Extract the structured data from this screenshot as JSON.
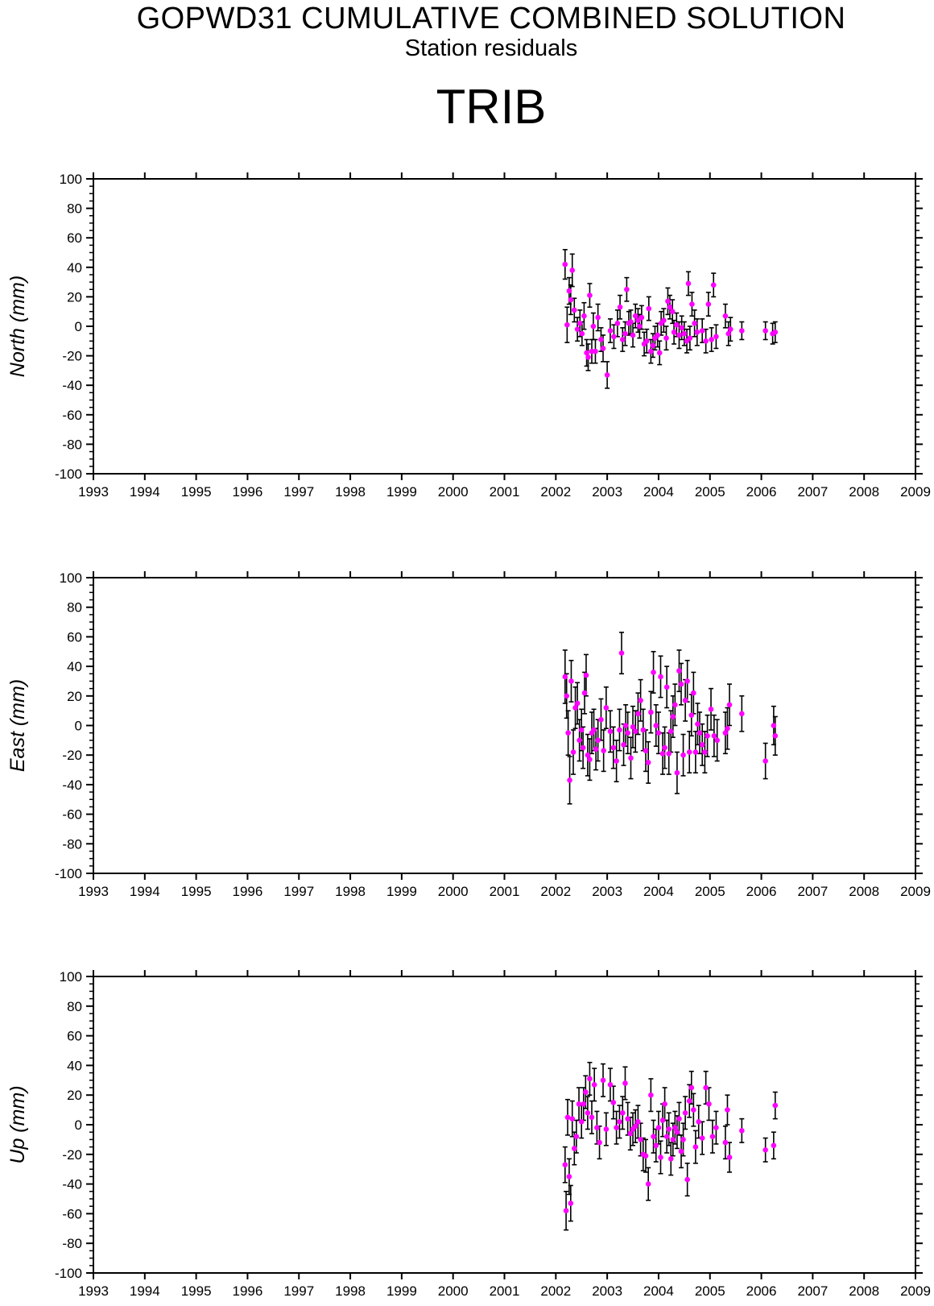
{
  "header": {
    "title": "GOPWD31 CUMULATIVE COMBINED SOLUTION",
    "subtitle": "Station residuals",
    "station": "TRIB"
  },
  "colors": {
    "point": "#ff00ff",
    "errorbar": "#000000",
    "axis": "#000000"
  },
  "chart_data": [
    {
      "type": "scatter",
      "ylabel": "North (mm)",
      "xlim": [
        1993,
        2009
      ],
      "ylim": [
        -100,
        100
      ],
      "x_ticks": [
        "1993",
        "1994",
        "1995",
        "1996",
        "1997",
        "1998",
        "1999",
        "2000",
        "2001",
        "2002",
        "2003",
        "2004",
        "2005",
        "2006",
        "2007",
        "2008",
        "2009"
      ],
      "y_ticks": [
        "100",
        "80",
        "60",
        "40",
        "20",
        "0",
        "-20",
        "-40",
        "-60",
        "-80",
        "-100"
      ],
      "grid": false,
      "points": [
        [
          2002.18,
          42,
          10
        ],
        [
          2002.22,
          1,
          12
        ],
        [
          2002.26,
          24,
          9
        ],
        [
          2002.29,
          18,
          10
        ],
        [
          2002.32,
          38,
          11
        ],
        [
          2002.36,
          11,
          8
        ],
        [
          2002.42,
          -2,
          8
        ],
        [
          2002.47,
          2,
          9
        ],
        [
          2002.51,
          -5,
          8
        ],
        [
          2002.55,
          7,
          9
        ],
        [
          2002.6,
          -18,
          9
        ],
        [
          2002.63,
          -21,
          9
        ],
        [
          2002.66,
          21,
          8
        ],
        [
          2002.7,
          -17,
          8
        ],
        [
          2002.73,
          0,
          9
        ],
        [
          2002.77,
          -17,
          8
        ],
        [
          2002.82,
          6,
          9
        ],
        [
          2002.88,
          -9,
          8
        ],
        [
          2002.92,
          -15,
          9
        ],
        [
          2003.0,
          -33,
          9
        ],
        [
          2003.06,
          -3,
          8
        ],
        [
          2003.13,
          -7,
          8
        ],
        [
          2003.2,
          2,
          9
        ],
        [
          2003.25,
          13,
          8
        ],
        [
          2003.3,
          -9,
          8
        ],
        [
          2003.35,
          -5,
          8
        ],
        [
          2003.38,
          25,
          8
        ],
        [
          2003.42,
          2,
          8
        ],
        [
          2003.46,
          3,
          8
        ],
        [
          2003.5,
          -6,
          8
        ],
        [
          2003.55,
          7,
          8
        ],
        [
          2003.6,
          4,
          8
        ],
        [
          2003.63,
          0,
          8
        ],
        [
          2003.67,
          6,
          8
        ],
        [
          2003.72,
          -12,
          8
        ],
        [
          2003.77,
          -10,
          8
        ],
        [
          2003.81,
          12,
          8
        ],
        [
          2003.85,
          -17,
          8
        ],
        [
          2003.89,
          -13,
          8
        ],
        [
          2003.93,
          -8,
          8
        ],
        [
          2003.98,
          -6,
          8
        ],
        [
          2004.02,
          -18,
          8
        ],
        [
          2004.05,
          2,
          8
        ],
        [
          2004.1,
          4,
          8
        ],
        [
          2004.15,
          -8,
          8
        ],
        [
          2004.18,
          17,
          9
        ],
        [
          2004.22,
          13,
          8
        ],
        [
          2004.27,
          10,
          8
        ],
        [
          2004.3,
          -4,
          8
        ],
        [
          2004.35,
          1,
          8
        ],
        [
          2004.4,
          -6,
          9
        ],
        [
          2004.45,
          -1,
          8
        ],
        [
          2004.5,
          -5,
          8
        ],
        [
          2004.55,
          -10,
          8
        ],
        [
          2004.58,
          29,
          8
        ],
        [
          2004.61,
          -8,
          8
        ],
        [
          2004.65,
          15,
          8
        ],
        [
          2004.7,
          2,
          9
        ],
        [
          2004.75,
          -4,
          9
        ],
        [
          2004.85,
          -3,
          8
        ],
        [
          2004.92,
          -10,
          8
        ],
        [
          2004.97,
          15,
          8
        ],
        [
          2005.03,
          -9,
          8
        ],
        [
          2005.07,
          28,
          8
        ],
        [
          2005.12,
          -7,
          8
        ],
        [
          2005.3,
          7,
          8
        ],
        [
          2005.36,
          -5,
          8
        ],
        [
          2005.4,
          -2,
          8
        ],
        [
          2005.62,
          -3,
          6
        ],
        [
          2006.08,
          -3,
          6
        ],
        [
          2006.22,
          -5,
          7
        ],
        [
          2006.27,
          -4,
          7
        ]
      ]
    },
    {
      "type": "scatter",
      "ylabel": "East (mm)",
      "xlim": [
        1993,
        2009
      ],
      "ylim": [
        -100,
        100
      ],
      "x_ticks": [
        "1993",
        "1994",
        "1995",
        "1996",
        "1997",
        "1998",
        "1999",
        "2000",
        "2001",
        "2002",
        "2003",
        "2004",
        "2005",
        "2006",
        "2007",
        "2008",
        "2009"
      ],
      "y_ticks": [
        "100",
        "80",
        "60",
        "40",
        "20",
        "0",
        "-20",
        "-40",
        "-60",
        "-80",
        "-100"
      ],
      "grid": false,
      "points": [
        [
          2002.18,
          33,
          18
        ],
        [
          2002.21,
          20,
          15
        ],
        [
          2002.24,
          -5,
          15
        ],
        [
          2002.27,
          -37,
          16
        ],
        [
          2002.3,
          30,
          14
        ],
        [
          2002.34,
          -18,
          15
        ],
        [
          2002.38,
          12,
          14
        ],
        [
          2002.42,
          15,
          14
        ],
        [
          2002.46,
          -10,
          14
        ],
        [
          2002.5,
          -3,
          14
        ],
        [
          2002.53,
          -15,
          14
        ],
        [
          2002.56,
          22,
          14
        ],
        [
          2002.59,
          34,
          14
        ],
        [
          2002.62,
          -20,
          14
        ],
        [
          2002.66,
          -23,
          14
        ],
        [
          2002.7,
          -5,
          14
        ],
        [
          2002.74,
          -3,
          14
        ],
        [
          2002.78,
          -16,
          14
        ],
        [
          2002.82,
          -10,
          14
        ],
        [
          2002.88,
          4,
          14
        ],
        [
          2002.93,
          -17,
          14
        ],
        [
          2002.98,
          12,
          14
        ],
        [
          2003.06,
          -4,
          14
        ],
        [
          2003.12,
          -15,
          14
        ],
        [
          2003.18,
          -24,
          14
        ],
        [
          2003.24,
          -3,
          14
        ],
        [
          2003.28,
          49,
          14
        ],
        [
          2003.32,
          -13,
          14
        ],
        [
          2003.36,
          0,
          14
        ],
        [
          2003.4,
          -5,
          14
        ],
        [
          2003.46,
          -22,
          14
        ],
        [
          2003.5,
          -1,
          14
        ],
        [
          2003.55,
          -4,
          14
        ],
        [
          2003.6,
          8,
          14
        ],
        [
          2003.65,
          17,
          14
        ],
        [
          2003.7,
          -3,
          14
        ],
        [
          2003.75,
          -17,
          14
        ],
        [
          2003.8,
          -25,
          14
        ],
        [
          2003.85,
          9,
          14
        ],
        [
          2003.9,
          36,
          14
        ],
        [
          2003.95,
          0,
          14
        ],
        [
          2004.0,
          -5,
          14
        ],
        [
          2004.04,
          33,
          14
        ],
        [
          2004.08,
          -19,
          14
        ],
        [
          2004.12,
          -15,
          14
        ],
        [
          2004.16,
          26,
          14
        ],
        [
          2004.2,
          -19,
          14
        ],
        [
          2004.24,
          -4,
          14
        ],
        [
          2004.28,
          6,
          14
        ],
        [
          2004.32,
          14,
          14
        ],
        [
          2004.36,
          -32,
          14
        ],
        [
          2004.4,
          37,
          14
        ],
        [
          2004.44,
          28,
          14
        ],
        [
          2004.48,
          -20,
          14
        ],
        [
          2004.52,
          17,
          14
        ],
        [
          2004.56,
          30,
          14
        ],
        [
          2004.6,
          -18,
          14
        ],
        [
          2004.64,
          7,
          14
        ],
        [
          2004.68,
          22,
          14
        ],
        [
          2004.72,
          -18,
          14
        ],
        [
          2004.76,
          1,
          14
        ],
        [
          2004.8,
          -5,
          14
        ],
        [
          2004.85,
          -13,
          14
        ],
        [
          2004.9,
          -18,
          14
        ],
        [
          2004.95,
          -7,
          14
        ],
        [
          2005.02,
          11,
          14
        ],
        [
          2005.08,
          -7,
          14
        ],
        [
          2005.14,
          -10,
          14
        ],
        [
          2005.3,
          -5,
          14
        ],
        [
          2005.34,
          -2,
          14
        ],
        [
          2005.38,
          14,
          14
        ],
        [
          2005.62,
          8,
          12
        ],
        [
          2006.08,
          -24,
          12
        ],
        [
          2006.24,
          0,
          13
        ],
        [
          2006.27,
          -7,
          13
        ]
      ]
    },
    {
      "type": "scatter",
      "ylabel": "Up (mm)",
      "xlim": [
        1993,
        2009
      ],
      "ylim": [
        -100,
        100
      ],
      "x_ticks": [
        "1993",
        "1994",
        "1995",
        "1996",
        "1997",
        "1998",
        "1999",
        "2000",
        "2001",
        "2002",
        "2003",
        "2004",
        "2005",
        "2006",
        "2007",
        "2008",
        "2009"
      ],
      "y_ticks": [
        "100",
        "80",
        "60",
        "40",
        "20",
        "0",
        "-20",
        "-40",
        "-60",
        "-80",
        "-100"
      ],
      "grid": false,
      "points": [
        [
          2002.18,
          -27,
          12
        ],
        [
          2002.2,
          -58,
          13
        ],
        [
          2002.23,
          5,
          12
        ],
        [
          2002.26,
          -35,
          12
        ],
        [
          2002.29,
          -53,
          12
        ],
        [
          2002.32,
          4,
          12
        ],
        [
          2002.36,
          -16,
          11
        ],
        [
          2002.4,
          -8,
          11
        ],
        [
          2002.45,
          14,
          11
        ],
        [
          2002.5,
          2,
          11
        ],
        [
          2002.54,
          14,
          11
        ],
        [
          2002.58,
          22,
          11
        ],
        [
          2002.62,
          8,
          11
        ],
        [
          2002.66,
          31,
          11
        ],
        [
          2002.7,
          5,
          11
        ],
        [
          2002.75,
          27,
          11
        ],
        [
          2002.8,
          -2,
          11
        ],
        [
          2002.85,
          -12,
          11
        ],
        [
          2002.92,
          30,
          11
        ],
        [
          2002.98,
          -3,
          11
        ],
        [
          2003.06,
          27,
          11
        ],
        [
          2003.12,
          15,
          11
        ],
        [
          2003.18,
          -2,
          11
        ],
        [
          2003.24,
          2,
          11
        ],
        [
          2003.3,
          8,
          11
        ],
        [
          2003.35,
          28,
          11
        ],
        [
          2003.4,
          4,
          11
        ],
        [
          2003.45,
          -6,
          11
        ],
        [
          2003.5,
          -3,
          11
        ],
        [
          2003.55,
          -1,
          11
        ],
        [
          2003.6,
          2,
          11
        ],
        [
          2003.65,
          -10,
          11
        ],
        [
          2003.7,
          -20,
          11
        ],
        [
          2003.75,
          -21,
          11
        ],
        [
          2003.8,
          -40,
          11
        ],
        [
          2003.85,
          20,
          11
        ],
        [
          2003.9,
          -8,
          11
        ],
        [
          2003.95,
          -14,
          11
        ],
        [
          2004.0,
          -2,
          11
        ],
        [
          2004.04,
          -22,
          11
        ],
        [
          2004.08,
          3,
          11
        ],
        [
          2004.12,
          14,
          11
        ],
        [
          2004.16,
          -8,
          11
        ],
        [
          2004.2,
          -3,
          11
        ],
        [
          2004.24,
          -23,
          11
        ],
        [
          2004.28,
          -10,
          11
        ],
        [
          2004.32,
          -2,
          11
        ],
        [
          2004.36,
          -5,
          11
        ],
        [
          2004.4,
          4,
          11
        ],
        [
          2004.44,
          -18,
          11
        ],
        [
          2004.48,
          -10,
          11
        ],
        [
          2004.52,
          8,
          11
        ],
        [
          2004.56,
          -37,
          11
        ],
        [
          2004.6,
          16,
          11
        ],
        [
          2004.64,
          25,
          11
        ],
        [
          2004.68,
          10,
          11
        ],
        [
          2004.72,
          -15,
          11
        ],
        [
          2004.78,
          2,
          11
        ],
        [
          2004.85,
          -9,
          11
        ],
        [
          2004.92,
          25,
          11
        ],
        [
          2004.98,
          14,
          11
        ],
        [
          2005.05,
          -8,
          11
        ],
        [
          2005.12,
          -2,
          11
        ],
        [
          2005.3,
          -12,
          11
        ],
        [
          2005.34,
          10,
          10
        ],
        [
          2005.38,
          -22,
          10
        ],
        [
          2005.62,
          -4,
          8
        ],
        [
          2006.08,
          -17,
          8
        ],
        [
          2006.24,
          -14,
          9
        ],
        [
          2006.27,
          13,
          9
        ]
      ]
    }
  ]
}
